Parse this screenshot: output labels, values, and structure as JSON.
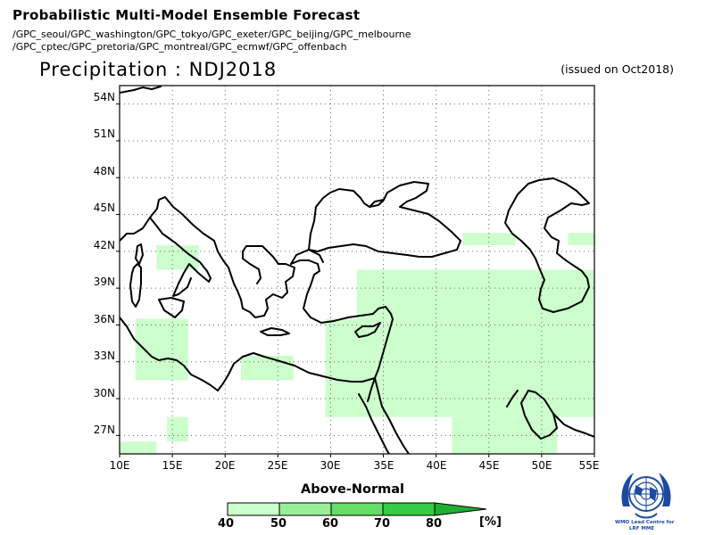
{
  "header": {
    "title": "Probabilistic Multi-Model Ensemble Forecast",
    "sources_line1": "/GPC_seoul/GPC_washington/GPC_tokyo/GPC_exeter/GPC_beijing/GPC_melbourne",
    "sources_line2": "/GPC_cptec/GPC_pretoria/GPC_montreal/GPC_ecmwf/GPC_offenbach",
    "variable_title": "Precipitation : NDJ2018",
    "issued": "(issued on Oct2018)"
  },
  "map": {
    "lat_labels": [
      "54N",
      "51N",
      "48N",
      "45N",
      "42N",
      "39N",
      "36N",
      "33N",
      "30N",
      "27N"
    ],
    "lon_labels": [
      "10E",
      "15E",
      "20E",
      "25E",
      "30E",
      "35E",
      "40E",
      "45E",
      "50E",
      "55E"
    ],
    "lon_range": [
      10,
      55
    ],
    "lat_range": [
      25.5,
      55.5
    ],
    "grid": true,
    "shading_color": "#ccffcc",
    "above_normal_40_50_cells_deg": [
      {
        "lon": [
          42.5,
          47.5
        ],
        "lat": [
          42.5,
          43.5
        ]
      },
      {
        "lon": [
          52.5,
          55
        ],
        "lat": [
          42.5,
          43.5
        ]
      },
      {
        "lon": [
          13.5,
          17.5
        ],
        "lat": [
          40.5,
          42.5
        ]
      },
      {
        "lon": [
          32.5,
          55
        ],
        "lat": [
          36.5,
          40.5
        ]
      },
      {
        "lon": [
          11.5,
          16.5
        ],
        "lat": [
          31.5,
          36.5
        ]
      },
      {
        "lon": [
          21.5,
          26.5
        ],
        "lat": [
          31.5,
          33.5
        ]
      },
      {
        "lon": [
          29.5,
          55
        ],
        "lat": [
          28.5,
          36.5
        ]
      },
      {
        "lon": [
          14.5,
          16.5
        ],
        "lat": [
          26.5,
          28.5
        ]
      },
      {
        "lon": [
          41.5,
          51.5
        ],
        "lat": [
          25.5,
          28.5
        ]
      },
      {
        "lon": [
          10,
          13.5
        ],
        "lat": [
          25.5,
          26.5
        ]
      }
    ]
  },
  "colorbar": {
    "title": "Above-Normal",
    "labels": [
      "40",
      "50",
      "60",
      "70",
      "80"
    ],
    "unit": "[%]",
    "colors": [
      "#ccffcc",
      "#99ee99",
      "#66dd66",
      "#33cc44",
      "#20b030"
    ]
  },
  "logo": {
    "line1": "WMO Lead Centre for",
    "line2": "LRF MME"
  }
}
